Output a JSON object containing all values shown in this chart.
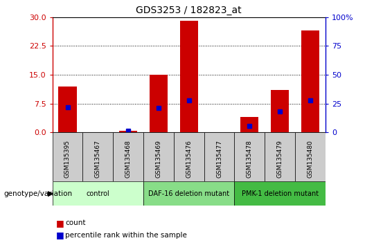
{
  "title": "GDS3253 / 182823_at",
  "samples": [
    "GSM135395",
    "GSM135467",
    "GSM135468",
    "GSM135469",
    "GSM135476",
    "GSM135477",
    "GSM135478",
    "GSM135479",
    "GSM135480"
  ],
  "counts": [
    12.0,
    0.05,
    0.4,
    15.0,
    29.0,
    0.05,
    4.0,
    11.0,
    26.5
  ],
  "percentile_ranks": [
    22.0,
    0.0,
    1.0,
    21.0,
    28.0,
    0.0,
    5.5,
    18.0,
    27.5
  ],
  "left_ylim": [
    0,
    30
  ],
  "right_ylim": [
    0,
    100
  ],
  "left_yticks": [
    0,
    7.5,
    15,
    22.5,
    30
  ],
  "right_yticks": [
    0,
    25,
    50,
    75,
    100
  ],
  "groups": [
    {
      "label": "control",
      "start": 0,
      "end": 3,
      "color": "#ccffcc"
    },
    {
      "label": "DAF-16 deletion mutant",
      "start": 3,
      "end": 6,
      "color": "#88dd88"
    },
    {
      "label": "PMK-1 deletion mutant",
      "start": 6,
      "end": 9,
      "color": "#44bb44"
    }
  ],
  "bar_color": "#cc0000",
  "dot_color": "#0000cc",
  "tick_bg_color": "#cccccc",
  "left_axis_color": "#cc0000",
  "right_axis_color": "#0000cc",
  "legend_items": [
    "count",
    "percentile rank within the sample"
  ],
  "genotype_label": "genotype/variation",
  "bar_width": 0.6
}
